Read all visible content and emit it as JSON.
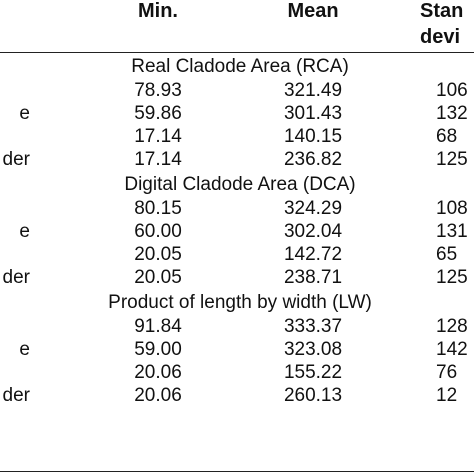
{
  "header": [
    "Min.",
    "Mean",
    "Stan",
    "devi"
  ],
  "sections": [
    {
      "title": "Real Cladode Area (RCA)",
      "rows": [
        {
          "values": [
            "78.93",
            "321.49",
            "106"
          ]
        },
        {
          "label": "e",
          "values": [
            "59.86",
            "301.43",
            "132"
          ]
        },
        {
          "values": [
            "17.14",
            "140.15",
            "68"
          ]
        },
        {
          "label": "der",
          "values": [
            "17.14",
            "236.82",
            "125"
          ]
        }
      ]
    },
    {
      "title": "Digital Cladode Area (DCA)",
      "rows": [
        {
          "values": [
            "80.15",
            "324.29",
            "108"
          ]
        },
        {
          "label": "e",
          "values": [
            "60.00",
            "302.04",
            "131"
          ]
        },
        {
          "values": [
            "20.05",
            "142.72",
            "65"
          ]
        },
        {
          "label": "der",
          "values": [
            "20.05",
            "238.71",
            "125"
          ]
        }
      ]
    },
    {
      "title": "Product of length by width (LW)",
      "rows": [
        {
          "values": [
            "91.84",
            "333.37",
            "128"
          ]
        },
        {
          "label": "e",
          "values": [
            "59.00",
            "323.08",
            "142"
          ]
        },
        {
          "values": [
            "20.06",
            "155.22",
            "76"
          ]
        },
        {
          "label": "der",
          "values": [
            "20.06",
            "260.13",
            "12"
          ]
        }
      ]
    }
  ]
}
